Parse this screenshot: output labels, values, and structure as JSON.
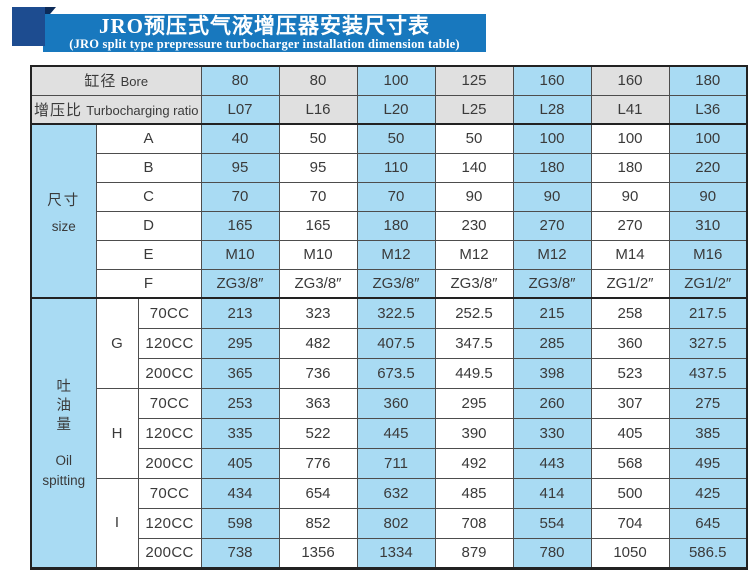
{
  "banner": {
    "title": "JRO预压式气液增压器安装尺寸表",
    "subtitle": "(JRO split type prepressure turbocharger installation dimension table)"
  },
  "colors": {
    "banner_blue": "#1878be",
    "corner_navy": "#1d4c90",
    "fold_navy": "#0c2b59",
    "cell_blue": "#a9dbf3",
    "header_gray": "#e0e0e0"
  },
  "table": {
    "header_rows": [
      {
        "label_zh": "缸径",
        "label_en": "Bore",
        "values": [
          "80",
          "80",
          "100",
          "125",
          "160",
          "160",
          "180"
        ]
      },
      {
        "label_zh": "增压比",
        "label_en": "Turbocharging ratio",
        "values": [
          "L07",
          "L16",
          "L20",
          "L25",
          "L28",
          "L41",
          "L36"
        ]
      }
    ],
    "size_section": {
      "label_zh": "尺寸",
      "label_en": "size",
      "rows": [
        {
          "letter": "A",
          "values": [
            "40",
            "50",
            "50",
            "50",
            "100",
            "100",
            "100"
          ]
        },
        {
          "letter": "B",
          "values": [
            "95",
            "95",
            "110",
            "140",
            "180",
            "180",
            "220"
          ]
        },
        {
          "letter": "C",
          "values": [
            "70",
            "70",
            "70",
            "90",
            "90",
            "90",
            "90"
          ]
        },
        {
          "letter": "D",
          "values": [
            "165",
            "165",
            "180",
            "230",
            "270",
            "270",
            "310"
          ]
        },
        {
          "letter": "E",
          "values": [
            "M10",
            "M10",
            "M12",
            "M12",
            "M12",
            "M14",
            "M16"
          ]
        },
        {
          "letter": "F",
          "values": [
            "ZG3/8″",
            "ZG3/8″",
            "ZG3/8″",
            "ZG3/8″",
            "ZG3/8″",
            "ZG1/2″",
            "ZG1/2″"
          ]
        }
      ]
    },
    "oil_section": {
      "label_zh": "吐\n油\n量",
      "label_en_1": "Oil",
      "label_en_2": "spitting",
      "groups": [
        {
          "letter": "G",
          "rows": [
            {
              "cc": "70CC",
              "values": [
                "213",
                "323",
                "322.5",
                "252.5",
                "215",
                "258",
                "217.5"
              ]
            },
            {
              "cc": "120CC",
              "values": [
                "295",
                "482",
                "407.5",
                "347.5",
                "285",
                "360",
                "327.5"
              ]
            },
            {
              "cc": "200CC",
              "values": [
                "365",
                "736",
                "673.5",
                "449.5",
                "398",
                "523",
                "437.5"
              ]
            }
          ]
        },
        {
          "letter": "H",
          "rows": [
            {
              "cc": "70CC",
              "values": [
                "253",
                "363",
                "360",
                "295",
                "260",
                "307",
                "275"
              ]
            },
            {
              "cc": "120CC",
              "values": [
                "335",
                "522",
                "445",
                "390",
                "330",
                "405",
                "385"
              ]
            },
            {
              "cc": "200CC",
              "values": [
                "405",
                "776",
                "711",
                "492",
                "443",
                "568",
                "495"
              ]
            }
          ]
        },
        {
          "letter": "I",
          "rows": [
            {
              "cc": "70CC",
              "values": [
                "434",
                "654",
                "632",
                "485",
                "414",
                "500",
                "425"
              ]
            },
            {
              "cc": "120CC",
              "values": [
                "598",
                "852",
                "802",
                "708",
                "554",
                "704",
                "645"
              ]
            },
            {
              "cc": "200CC",
              "values": [
                "738",
                "1356",
                "1334",
                "879",
                "780",
                "1050",
                "586.5"
              ]
            }
          ]
        }
      ]
    }
  }
}
